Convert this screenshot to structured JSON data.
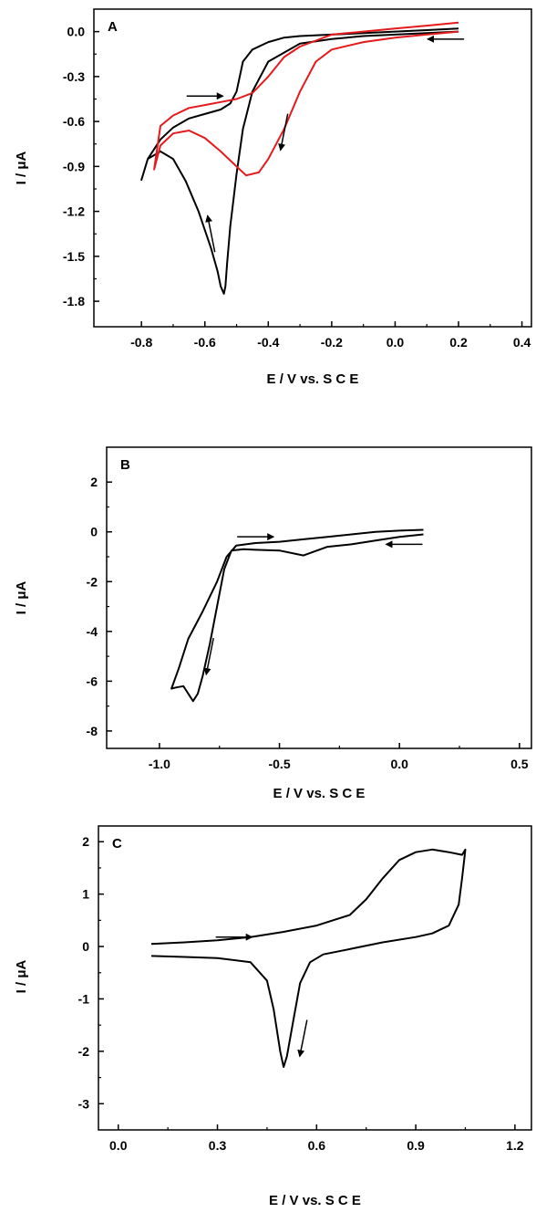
{
  "chart_data": [
    {
      "type": "line",
      "panel_label": "A",
      "xlabel": "E  /  V  vs.  S  C  E",
      "ylabel": "I  /  μA",
      "xlim": [
        -0.95,
        0.43
      ],
      "ylim": [
        -1.97,
        0.15
      ],
      "xticks": [
        -0.8,
        -0.6,
        -0.4,
        -0.2,
        0.0,
        0.2,
        0.4
      ],
      "xtick_labels": [
        "-0.8",
        "-0.6",
        "-0.4",
        "-0.2",
        "0.0",
        "0.2",
        "0.4"
      ],
      "yticks": [
        0.0,
        -0.3,
        -0.6,
        -0.9,
        -1.2,
        -1.5,
        -1.8
      ],
      "ytick_labels": [
        "0.0",
        "-0.3",
        "-0.6",
        "-0.9",
        "-1.2",
        "-1.5",
        "-1.8"
      ],
      "grid": false,
      "series": [
        {
          "color": "#000000",
          "x": [
            0.2,
            0.1,
            0.0,
            -0.1,
            -0.2,
            -0.3,
            -0.4,
            -0.45,
            -0.48,
            -0.5,
            -0.52,
            -0.53,
            -0.535,
            -0.54,
            -0.55,
            -0.56,
            -0.58,
            -0.62,
            -0.66,
            -0.7,
            -0.74,
            -0.78,
            -0.8,
            -0.78,
            -0.74,
            -0.7,
            -0.65,
            -0.6,
            -0.55,
            -0.52,
            -0.5,
            -0.48,
            -0.45,
            -0.4,
            -0.35,
            -0.3,
            -0.2,
            -0.1,
            0.0,
            0.1,
            0.2
          ],
          "y": [
            0.0,
            -0.01,
            -0.02,
            -0.03,
            -0.05,
            -0.08,
            -0.2,
            -0.4,
            -0.65,
            -0.95,
            -1.3,
            -1.55,
            -1.7,
            -1.75,
            -1.7,
            -1.6,
            -1.45,
            -1.2,
            -1.0,
            -0.85,
            -0.8,
            -0.85,
            -0.99,
            -0.85,
            -0.72,
            -0.64,
            -0.58,
            -0.55,
            -0.52,
            -0.48,
            -0.4,
            -0.2,
            -0.12,
            -0.07,
            -0.04,
            -0.03,
            -0.02,
            -0.01,
            0.0,
            0.01,
            0.02
          ]
        },
        {
          "color": "#e41a1c",
          "x": [
            0.2,
            0.1,
            0.0,
            -0.1,
            -0.2,
            -0.25,
            -0.3,
            -0.35,
            -0.4,
            -0.43,
            -0.47,
            -0.5,
            -0.55,
            -0.6,
            -0.65,
            -0.7,
            -0.74,
            -0.76,
            -0.74,
            -0.7,
            -0.65,
            -0.6,
            -0.55,
            -0.5,
            -0.45,
            -0.4,
            -0.35,
            -0.3,
            -0.25,
            -0.2,
            -0.1,
            0.0,
            0.1,
            0.2
          ],
          "y": [
            0.0,
            -0.02,
            -0.04,
            -0.07,
            -0.12,
            -0.2,
            -0.4,
            -0.65,
            -0.85,
            -0.94,
            -0.96,
            -0.9,
            -0.8,
            -0.71,
            -0.66,
            -0.68,
            -0.76,
            -0.92,
            -0.63,
            -0.56,
            -0.51,
            -0.49,
            -0.47,
            -0.45,
            -0.41,
            -0.3,
            -0.17,
            -0.1,
            -0.06,
            -0.02,
            0.0,
            0.02,
            0.04,
            0.06
          ]
        }
      ],
      "arrows": [
        {
          "x": -0.6,
          "y": -0.43,
          "dir": "right"
        },
        {
          "x": 0.16,
          "y": -0.05,
          "dir": "left"
        },
        {
          "x": -0.35,
          "y": -0.67,
          "dir": "down"
        },
        {
          "x": -0.58,
          "y": -1.35,
          "dir": "up"
        }
      ]
    },
    {
      "type": "line",
      "panel_label": "B",
      "xlabel": "E  /  V  vs.  S  C  E",
      "ylabel": "I  /  μA",
      "xlim": [
        -1.22,
        0.55
      ],
      "ylim": [
        -8.7,
        3.4
      ],
      "xticks": [
        -1.0,
        -0.5,
        0.0,
        0.5
      ],
      "xtick_labels": [
        "-1.0",
        "-0.5",
        "0.0",
        "0.5"
      ],
      "yticks": [
        2,
        0,
        -2,
        -4,
        -6,
        -8
      ],
      "ytick_labels": [
        "2",
        "0",
        "-2",
        "-4",
        "-6",
        "-8"
      ],
      "grid": false,
      "series": [
        {
          "color": "#000000",
          "x": [
            0.1,
            0.0,
            -0.1,
            -0.2,
            -0.3,
            -0.4,
            -0.5,
            -0.6,
            -0.65,
            -0.7,
            -0.73,
            -0.76,
            -0.79,
            -0.82,
            -0.84,
            -0.86,
            -0.88,
            -0.9,
            -0.93,
            -0.95,
            -0.92,
            -0.88,
            -0.82,
            -0.76,
            -0.72,
            -0.68,
            -0.6,
            -0.5,
            -0.4,
            -0.3,
            -0.2,
            -0.1,
            0.0,
            0.1
          ],
          "y": [
            -0.1,
            -0.2,
            -0.35,
            -0.5,
            -0.6,
            -0.95,
            -0.75,
            -0.72,
            -0.7,
            -0.75,
            -1.5,
            -3.0,
            -4.5,
            -5.8,
            -6.5,
            -6.8,
            -6.5,
            -6.2,
            -6.25,
            -6.3,
            -5.5,
            -4.3,
            -3.2,
            -2.0,
            -1.0,
            -0.55,
            -0.45,
            -0.4,
            -0.3,
            -0.2,
            -0.1,
            0.0,
            0.05,
            0.08
          ]
        }
      ],
      "arrows": [
        {
          "x": -0.6,
          "y": -0.2,
          "dir": "right"
        },
        {
          "x": 0.02,
          "y": -0.5,
          "dir": "left"
        },
        {
          "x": -0.79,
          "y": -5.0,
          "dir": "down"
        }
      ]
    },
    {
      "type": "line",
      "panel_label": "C",
      "xlabel": "E  /  V  vs.  S  C  E",
      "ylabel": "I  /  μA",
      "xlim": [
        -0.06,
        1.25
      ],
      "ylim": [
        -3.5,
        2.3
      ],
      "xticks": [
        0.0,
        0.3,
        0.6,
        0.9,
        1.2
      ],
      "xtick_labels": [
        "0.0",
        "0.3",
        "0.6",
        "0.9",
        "1.2"
      ],
      "yticks": [
        2,
        1,
        0,
        -1,
        -2,
        -3
      ],
      "ytick_labels": [
        "2",
        "1",
        "0",
        "-1",
        "-2",
        "-3"
      ],
      "grid": false,
      "series": [
        {
          "color": "#000000",
          "x": [
            0.1,
            0.2,
            0.3,
            0.4,
            0.5,
            0.6,
            0.7,
            0.75,
            0.8,
            0.85,
            0.9,
            0.95,
            1.0,
            1.04,
            1.05,
            1.04,
            1.03,
            1.0,
            0.95,
            0.9,
            0.8,
            0.7,
            0.62,
            0.58,
            0.55,
            0.53,
            0.51,
            0.5,
            0.49,
            0.47,
            0.45,
            0.4,
            0.3,
            0.2,
            0.1
          ],
          "y": [
            0.05,
            0.08,
            0.12,
            0.18,
            0.28,
            0.4,
            0.6,
            0.9,
            1.3,
            1.65,
            1.8,
            1.85,
            1.8,
            1.75,
            1.85,
            1.3,
            0.8,
            0.4,
            0.25,
            0.18,
            0.08,
            -0.05,
            -0.15,
            -0.3,
            -0.7,
            -1.4,
            -2.1,
            -2.3,
            -2.0,
            -1.2,
            -0.65,
            -0.3,
            -0.22,
            -0.2,
            -0.18
          ]
        }
      ],
      "arrows": [
        {
          "x": 0.35,
          "y": 0.18,
          "dir": "right"
        },
        {
          "x": 0.56,
          "y": -1.75,
          "dir": "down"
        }
      ]
    }
  ]
}
